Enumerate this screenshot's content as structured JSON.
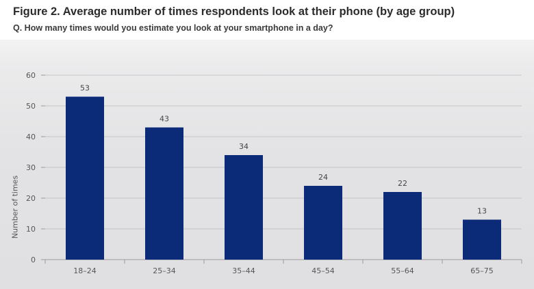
{
  "header": {
    "title": "Figure 2. Average number of times respondents look at their phone (by age group)",
    "subtitle": "Q. How many times would you estimate you look at your smartphone in a day?"
  },
  "colors": {
    "bar": "#0b2a78",
    "grid": "#c4c4c6",
    "axis_text": "#555555"
  },
  "chart_data": {
    "type": "bar",
    "title": "Figure 2. Average number of times respondents look at their phone (by age group)",
    "subtitle": "Q. How many times would you estimate you look at your smartphone in a day?",
    "categories": [
      "18–24",
      "25–34",
      "35–44",
      "45–54",
      "55–64",
      "65–75"
    ],
    "values": [
      53,
      43,
      34,
      24,
      22,
      13
    ],
    "data_labels": [
      "53",
      "43",
      "34",
      "24",
      "22",
      "13"
    ],
    "xlabel": "",
    "ylabel": "Number of times",
    "ylim": [
      0,
      60
    ],
    "yticks": [
      0,
      10,
      20,
      30,
      40,
      50,
      60
    ],
    "grid": true,
    "legend": "none"
  }
}
